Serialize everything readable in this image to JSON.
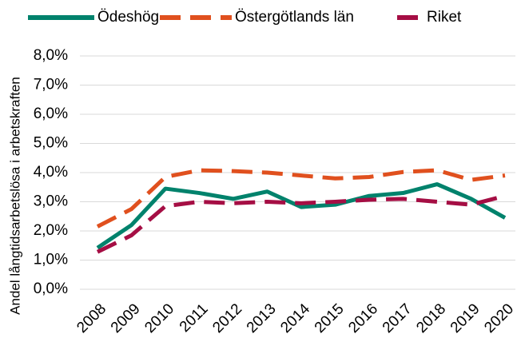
{
  "chart_data": {
    "type": "line",
    "y_label": "Andel långtidsarbetslösa i arbetskraften",
    "categories": [
      "2008",
      "2009",
      "2010",
      "2011",
      "2012",
      "2013",
      "2014",
      "2015",
      "2016",
      "2017",
      "2018",
      "2019",
      "2020"
    ],
    "series": [
      {
        "name": "Ödeshög",
        "color": "#00826c",
        "style": "solid",
        "values": [
          1.42,
          2.2,
          3.45,
          3.3,
          3.1,
          3.35,
          2.82,
          2.9,
          3.2,
          3.3,
          3.6,
          3.1,
          2.45
        ]
      },
      {
        "name": "Östergötlands län",
        "color": "#e0501e",
        "style": "dashed",
        "values": [
          2.15,
          2.75,
          3.85,
          4.08,
          4.05,
          4.0,
          3.9,
          3.8,
          3.85,
          4.02,
          4.08,
          3.75,
          3.9
        ]
      },
      {
        "name": "Riket",
        "color": "#a50e44",
        "style": "dashed",
        "values": [
          1.28,
          1.85,
          2.85,
          3.0,
          2.95,
          3.0,
          2.95,
          3.0,
          3.07,
          3.1,
          3.0,
          2.9,
          3.2
        ]
      }
    ],
    "ylim": [
      0,
      8
    ],
    "yticks": [
      {
        "value": 0,
        "label": "0,0%"
      },
      {
        "value": 1,
        "label": "1,0%"
      },
      {
        "value": 2,
        "label": "2,0%"
      },
      {
        "value": 3,
        "label": "3,0%"
      },
      {
        "value": 4,
        "label": "4,0%"
      },
      {
        "value": 5,
        "label": "5,0%"
      },
      {
        "value": 6,
        "label": "6,0%"
      },
      {
        "value": 7,
        "label": "7,0%"
      },
      {
        "value": 8,
        "label": "8,0%"
      }
    ],
    "grid": true,
    "legend": "top"
  }
}
